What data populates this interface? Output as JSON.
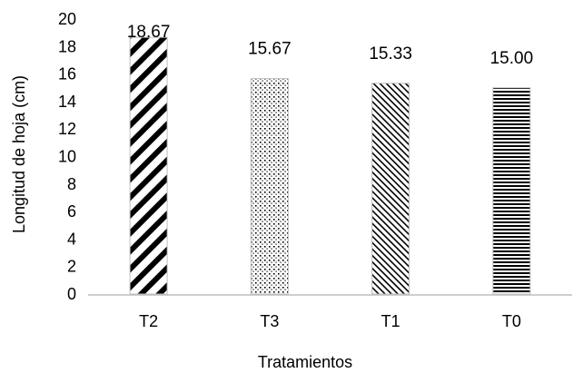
{
  "chart_data": {
    "type": "bar",
    "categories": [
      "T2",
      "T3",
      "T1",
      "T0"
    ],
    "values": [
      18.67,
      15.67,
      15.33,
      15.0
    ],
    "data_labels": [
      "18.67",
      "15.67",
      "15.33",
      "15.00"
    ],
    "patterns": [
      "diagonal-wide",
      "dots",
      "diagonal-fine",
      "horizontal-lines"
    ],
    "xlabel": "Tratamientos",
    "ylabel": "Longitud de hoja (cm)",
    "ylim": [
      0,
      20
    ],
    "yticks": [
      "0",
      "2",
      "4",
      "6",
      "8",
      "10",
      "12",
      "14",
      "16",
      "18",
      "20"
    ],
    "grid": false,
    "legend": "none",
    "colors": {
      "bar_fill": "#ffffff",
      "pattern": "#000000",
      "axis": "#bfbfbf"
    }
  }
}
